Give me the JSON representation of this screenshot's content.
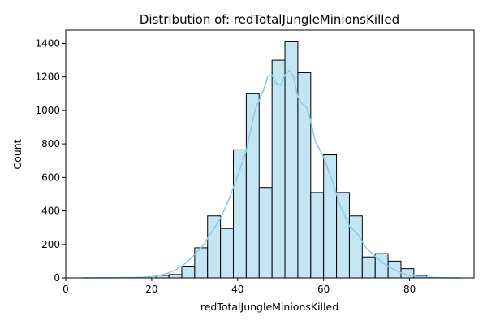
{
  "chart_data": {
    "type": "bar",
    "title": "Distribution of: redTotalJungleMinionsKilled",
    "xlabel": "redTotalJungleMinionsKilled",
    "ylabel": "Count",
    "xlim": [
      0,
      95
    ],
    "ylim": [
      0,
      1480
    ],
    "xticks": [
      0,
      20,
      40,
      60,
      80
    ],
    "yticks": [
      0,
      200,
      400,
      600,
      800,
      1000,
      1200,
      1400
    ],
    "bins": {
      "edges": [
        21,
        24,
        27,
        30,
        33,
        36,
        39,
        42,
        45,
        48,
        51,
        54,
        57,
        60,
        63,
        66,
        69,
        72,
        75,
        78,
        81,
        84
      ],
      "counts": [
        15,
        20,
        70,
        180,
        370,
        295,
        765,
        1100,
        540,
        1300,
        1410,
        1225,
        510,
        735,
        510,
        370,
        125,
        145,
        100,
        55,
        15
      ]
    },
    "kde": {
      "x": [
        4,
        10,
        15,
        18,
        20,
        22,
        24,
        26,
        28,
        30,
        32,
        34,
        36,
        38,
        40,
        42,
        44,
        45,
        46,
        47,
        48,
        49,
        50,
        51,
        52,
        53,
        54,
        55,
        56,
        57,
        58,
        60,
        62,
        64,
        66,
        68,
        70,
        72,
        74,
        76,
        78,
        80,
        82,
        84,
        86,
        88,
        92
      ],
      "y": [
        0,
        1,
        2,
        4,
        8,
        15,
        30,
        55,
        90,
        140,
        195,
        275,
        355,
        470,
        610,
        760,
        1000,
        1060,
        1120,
        1205,
        1210,
        1160,
        1150,
        1210,
        1240,
        1200,
        1080,
        1040,
        1020,
        940,
        820,
        720,
        580,
        420,
        310,
        260,
        175,
        130,
        85,
        55,
        30,
        15,
        8,
        4,
        2,
        1,
        0
      ]
    },
    "colors": {
      "bar_fill": "#c4e6f3",
      "bar_edge": "#000000",
      "kde_line": "#87ceeb"
    },
    "grid": false,
    "legend": "none"
  }
}
